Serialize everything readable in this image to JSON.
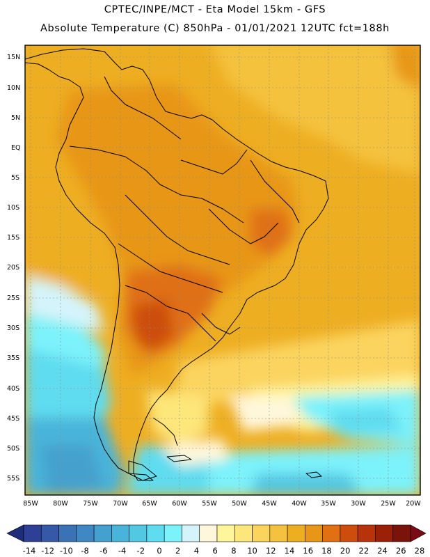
{
  "header": {
    "line1": "CPTEC/INPE/MCT -  Eta Model 15km - GFS",
    "line2": "Absolute Temperature (C) 850hPa - 01/01/2021 12UTC fct=188h"
  },
  "map": {
    "lat_labels": [
      "15N",
      "10N",
      "5N",
      "EQ",
      "5S",
      "10S",
      "15S",
      "20S",
      "25S",
      "30S",
      "35S",
      "40S",
      "45S",
      "50S",
      "55S"
    ],
    "lon_labels": [
      "85W",
      "80W",
      "75W",
      "70W",
      "65W",
      "60W",
      "55W",
      "50W",
      "45W",
      "40W",
      "35W",
      "30W",
      "25W",
      "20W"
    ]
  },
  "colorbar": {
    "labels": [
      "-14",
      "-12",
      "-10",
      "-8",
      "-6",
      "-4",
      "-2",
      "0",
      "2",
      "4",
      "6",
      "8",
      "10",
      "12",
      "14",
      "16",
      "18",
      "20",
      "22",
      "24",
      "26",
      "28"
    ],
    "colors": [
      "#2e3f96",
      "#3559a6",
      "#3b72b6",
      "#3f88c3",
      "#44a0ce",
      "#49b4d9",
      "#52c8e3",
      "#5fdcef",
      "#7cf2fb",
      "#d4f4fb",
      "#fff7dc",
      "#fff59b",
      "#fde67a",
      "#fbd45e",
      "#f4c23e",
      "#eeae22",
      "#e89617",
      "#e07012",
      "#cd4d0c",
      "#b8330a",
      "#9b2008",
      "#7a1409"
    ],
    "under_color": "#1e2d7a",
    "over_color": "#7a0a14"
  }
}
